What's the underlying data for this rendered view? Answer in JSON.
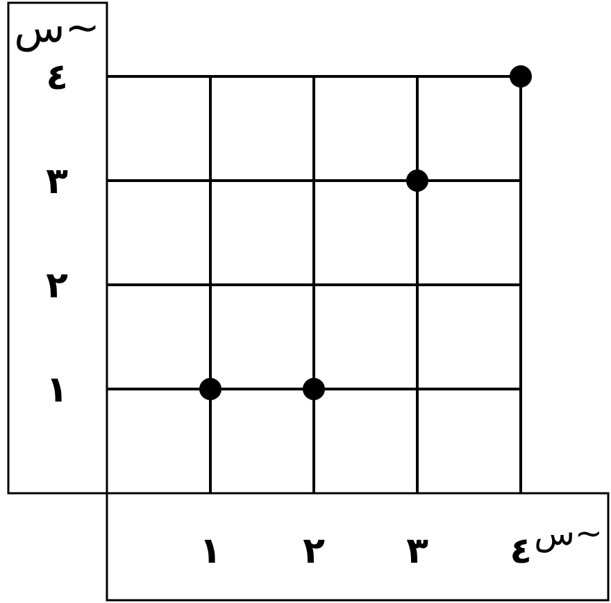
{
  "chart_data": {
    "type": "scatter",
    "xlabel": "س~",
    "ylabel": "س~",
    "x": [
      1,
      2,
      3,
      4
    ],
    "values": [
      1,
      1,
      3,
      4
    ],
    "color": "#000000",
    "marker": "circle",
    "xlim": [
      0,
      4
    ],
    "ylim": [
      0,
      4
    ],
    "xticks": [
      {
        "value": 1,
        "label": "١"
      },
      {
        "value": 2,
        "label": "٢"
      },
      {
        "value": 3,
        "label": "٣"
      },
      {
        "value": 4,
        "label": "٤"
      }
    ],
    "yticks": [
      {
        "value": 1,
        "label": "١"
      },
      {
        "value": 2,
        "label": "٢"
      },
      {
        "value": 3,
        "label": "٣"
      },
      {
        "value": 4,
        "label": "٤"
      }
    ],
    "grid": true
  }
}
